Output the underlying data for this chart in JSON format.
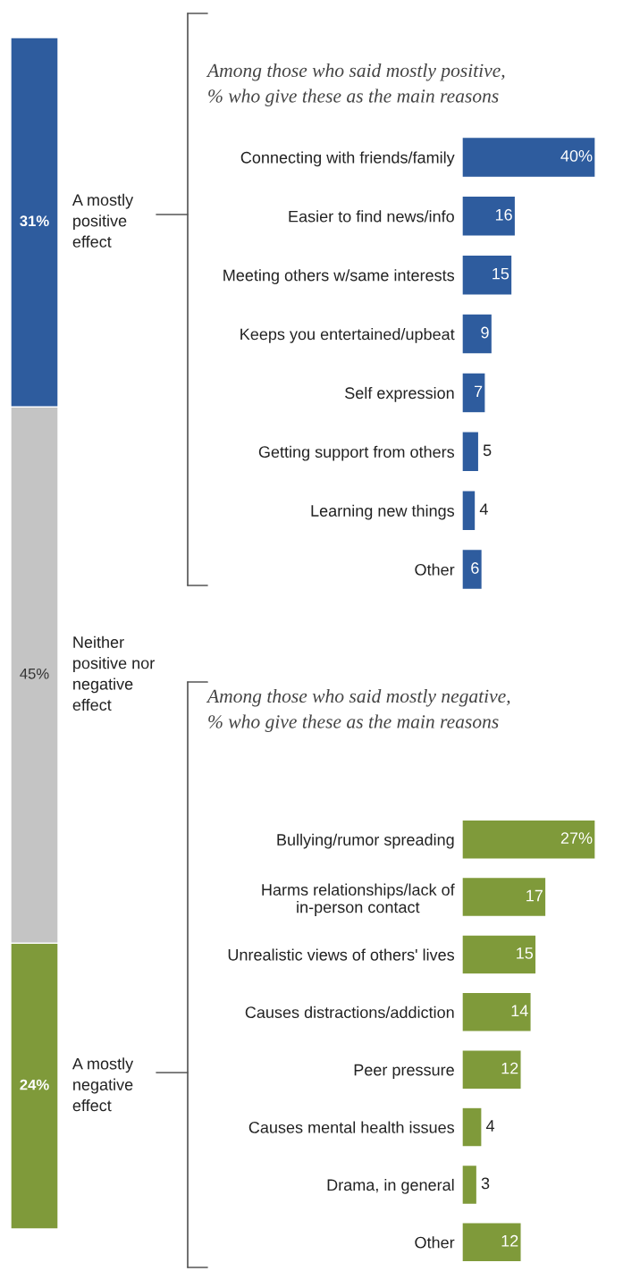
{
  "chart_data": [
    {
      "type": "bar",
      "stacked": true,
      "categories": [
        null
      ],
      "ylim": [
        0,
        100
      ],
      "tick_labels": false,
      "series": [
        {
          "name": "A mostly\nnegative\neffect",
          "color": "#7f9a3a",
          "values": [
            24
          ],
          "value_labels": [
            "24%"
          ]
        },
        {
          "name": "Neither\npositive nor\nnegative\neffect",
          "color": "#c4c4c4",
          "values": [
            45
          ],
          "value_labels": [
            "45%"
          ]
        },
        {
          "name": "A mostly\npositive\neffect",
          "color": "#2e5c9e",
          "values": [
            31
          ],
          "value_labels": [
            "31%"
          ]
        }
      ]
    },
    {
      "type": "bar",
      "orientation": "horizontal",
      "title": "Among those who said mostly positive,\n% who give these as the main reasons",
      "categories": [
        "Connecting with friends/family",
        "Easier to find news/info",
        "Meeting others w/same interests",
        "Keeps you entertained/upbeat",
        "Self expression",
        "Getting support from others",
        "Learning new things",
        "Other"
      ],
      "values": [
        40,
        16,
        15,
        9,
        7,
        5,
        4,
        6
      ],
      "value_labels": [
        "40%",
        "16",
        "15",
        "9",
        "7",
        "5",
        "4",
        "6"
      ],
      "color": "#2e5c9e",
      "tick_labels": "y"
    },
    {
      "type": "bar",
      "orientation": "horizontal",
      "title": "Among those who said mostly negative,\n% who give these as the main reasons",
      "categories": [
        "Bullying/rumor spreading",
        "Harms relationships/lack of\nin-person contact",
        "Unrealistic views of others' lives",
        "Causes distractions/addiction",
        "Peer pressure",
        "Causes mental health issues",
        "Drama, in general",
        "Other"
      ],
      "values": [
        27,
        17,
        15,
        14,
        12,
        4,
        3,
        12
      ],
      "value_labels": [
        "27%",
        "17",
        "15",
        "14",
        "12",
        "4",
        "3",
        "12"
      ],
      "color": "#7f9a3a",
      "tick_labels": "y"
    }
  ]
}
